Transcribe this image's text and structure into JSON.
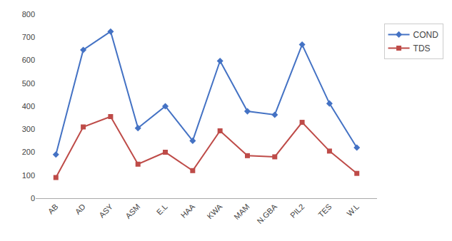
{
  "chart_data": {
    "type": "line",
    "categories": [
      "AB",
      "AD",
      "ASY",
      "ASM",
      "E.L",
      "HAA",
      "KWA",
      "MAM",
      "N.GBA",
      "PIL2",
      "TES",
      "W.L"
    ],
    "series": [
      {
        "name": "COND",
        "color": "#4472C4",
        "marker": "diamond",
        "values": [
          190,
          645,
          725,
          305,
          400,
          250,
          597,
          378,
          363,
          668,
          412,
          220
        ]
      },
      {
        "name": "TDS",
        "color": "#BE4B48",
        "marker": "square",
        "values": [
          90,
          310,
          355,
          148,
          200,
          120,
          293,
          185,
          180,
          330,
          205,
          108
        ]
      }
    ],
    "ylim": [
      0,
      800
    ],
    "yticks": [
      0,
      100,
      200,
      300,
      400,
      500,
      600,
      700,
      800
    ],
    "grid": false,
    "legend": "upper right"
  }
}
